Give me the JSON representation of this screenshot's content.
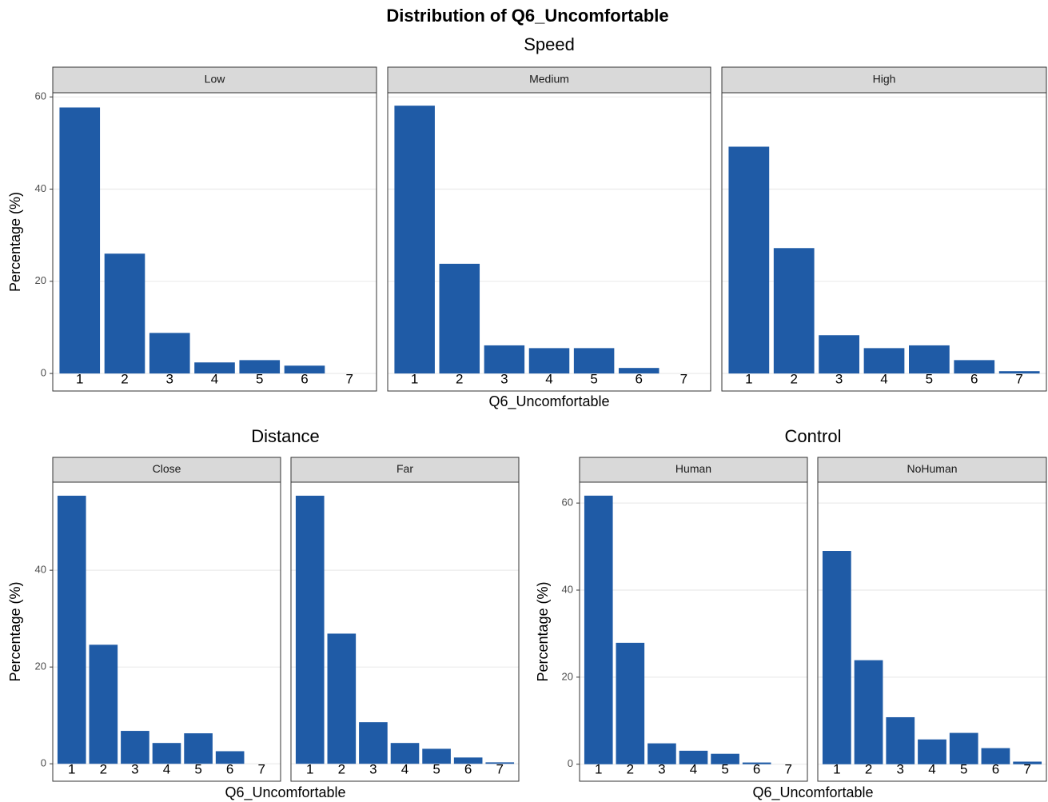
{
  "title": "Distribution of Q6_Uncomfortable",
  "chart_data": [
    {
      "type": "bar",
      "title": "Speed",
      "x_label": "Q6_Uncomfortable",
      "y_label": "Percentage (%)",
      "color": "#1f5ba6",
      "categories": [
        1,
        2,
        3,
        4,
        5,
        6,
        7
      ],
      "ylim": [
        -3.8,
        60.9
      ],
      "yticks": [
        0,
        20,
        40,
        60
      ],
      "grid": true,
      "facets": [
        {
          "name": "Low",
          "values": [
            57.7,
            26.0,
            8.8,
            2.4,
            2.9,
            1.7,
            0
          ]
        },
        {
          "name": "Medium",
          "values": [
            58.1,
            23.8,
            6.1,
            5.5,
            5.5,
            1.2,
            0
          ]
        },
        {
          "name": "High",
          "values": [
            49.2,
            27.2,
            8.3,
            5.5,
            6.1,
            2.9,
            0.5
          ]
        }
      ]
    },
    {
      "type": "bar",
      "title": "Distance",
      "x_label": "Q6_Uncomfortable",
      "y_label": "Percentage (%)",
      "color": "#1f5ba6",
      "categories": [
        1,
        2,
        3,
        4,
        5,
        6,
        7
      ],
      "ylim": [
        -3.6,
        58.2
      ],
      "yticks": [
        0,
        20,
        40
      ],
      "grid": true,
      "facets": [
        {
          "name": "Close",
          "values": [
            55.4,
            24.6,
            6.8,
            4.3,
            6.3,
            2.6,
            0
          ]
        },
        {
          "name": "Far",
          "values": [
            55.4,
            26.9,
            8.6,
            4.3,
            3.1,
            1.3,
            0.3
          ]
        }
      ]
    },
    {
      "type": "bar",
      "title": "Control",
      "x_label": "Q6_Uncomfortable",
      "y_label": "Percentage (%)",
      "color": "#1f5ba6",
      "categories": [
        1,
        2,
        3,
        4,
        5,
        6,
        7
      ],
      "ylim": [
        -3.9,
        64.8
      ],
      "yticks": [
        0,
        20,
        40,
        60
      ],
      "grid": true,
      "facets": [
        {
          "name": "Human",
          "values": [
            61.7,
            27.9,
            4.8,
            3.1,
            2.4,
            0.4,
            0
          ]
        },
        {
          "name": "NoHuman",
          "values": [
            49.0,
            23.9,
            10.8,
            5.7,
            7.2,
            3.7,
            0.6
          ]
        }
      ]
    }
  ]
}
